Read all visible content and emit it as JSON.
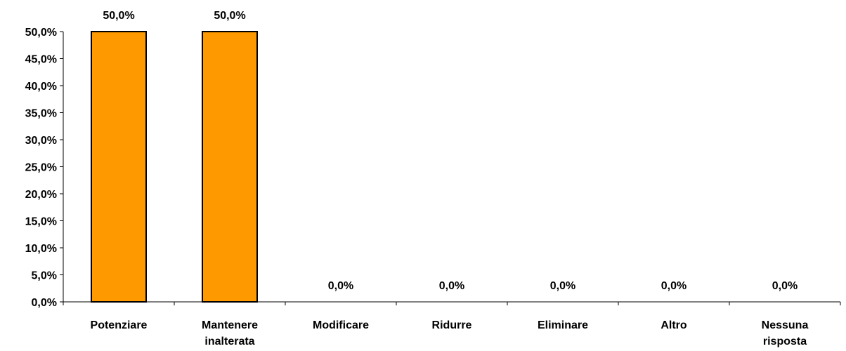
{
  "chart_data": {
    "type": "bar",
    "categories": [
      [
        "Potenziare"
      ],
      [
        "Mantenere",
        "inalterata"
      ],
      [
        "Modificare"
      ],
      [
        "Ridurre"
      ],
      [
        "Eliminare"
      ],
      [
        "Altro"
      ],
      [
        "Nessuna",
        "risposta"
      ]
    ],
    "values": [
      50.0,
      50.0,
      0.0,
      0.0,
      0.0,
      0.0,
      0.0
    ],
    "data_labels": [
      "50,0%",
      "50,0%",
      "0,0%",
      "0,0%",
      "0,0%",
      "0,0%",
      "0,0%"
    ],
    "y_ticks": [
      "0,0%",
      "5,0%",
      "10,0%",
      "15,0%",
      "20,0%",
      "25,0%",
      "30,0%",
      "35,0%",
      "40,0%",
      "45,0%",
      "50,0%"
    ],
    "ylim": [
      0,
      50
    ],
    "bar_color": "#FF9900",
    "bar_border_color": "#000000",
    "grid": false,
    "legend": false
  }
}
